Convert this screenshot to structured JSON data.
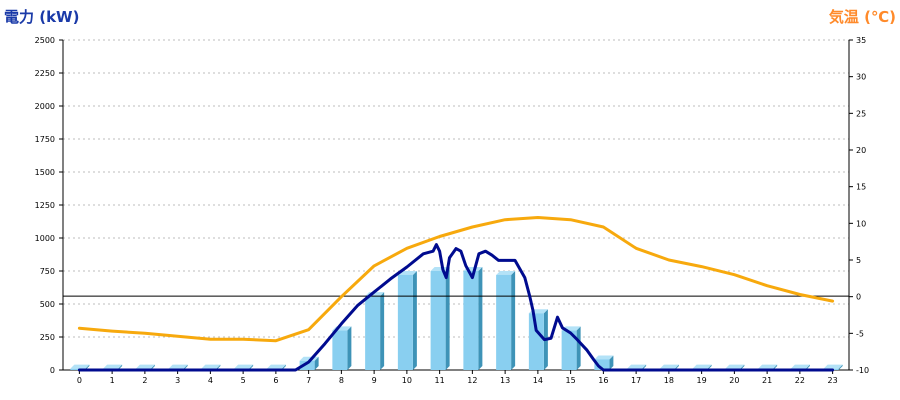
{
  "chart_data": {
    "type": "bar+line",
    "y_left_label": "電力 (kW)",
    "y_right_label": "気温 (℃)",
    "categories": [
      "0",
      "1",
      "2",
      "3",
      "4",
      "5",
      "6",
      "7",
      "8",
      "9",
      "10",
      "11",
      "12",
      "13",
      "14",
      "15",
      "16",
      "17",
      "18",
      "19",
      "20",
      "21",
      "22",
      "23"
    ],
    "y_left_ticks": [
      "0",
      "250",
      "500",
      "750",
      "1000",
      "1250",
      "1500",
      "1750",
      "2000",
      "2250",
      "2500"
    ],
    "y_right_ticks": [
      "-10",
      "-5",
      "0",
      "5",
      "10",
      "15",
      "20",
      "25",
      "30",
      "35"
    ],
    "y_left_range": [
      0,
      2500
    ],
    "y_right_range": [
      -10,
      35
    ],
    "grid": true,
    "series": [
      {
        "kind": "bar",
        "axis": "left",
        "values": [
          10,
          10,
          10,
          10,
          10,
          10,
          10,
          70,
          300,
          560,
          720,
          750,
          750,
          720,
          430,
          300,
          80,
          10,
          10,
          10,
          10,
          10,
          10,
          10
        ]
      },
      {
        "kind": "line",
        "axis": "left",
        "points": [
          [
            0,
            0
          ],
          [
            6.6,
            0
          ],
          [
            7,
            60
          ],
          [
            7.5,
            200
          ],
          [
            8,
            350
          ],
          [
            8.5,
            490
          ],
          [
            9,
            590
          ],
          [
            9.5,
            690
          ],
          [
            10,
            780
          ],
          [
            10.5,
            880
          ],
          [
            10.8,
            900
          ],
          [
            10.9,
            950
          ],
          [
            11,
            900
          ],
          [
            11.1,
            760
          ],
          [
            11.2,
            700
          ],
          [
            11.3,
            850
          ],
          [
            11.5,
            920
          ],
          [
            11.65,
            900
          ],
          [
            11.8,
            790
          ],
          [
            12,
            700
          ],
          [
            12.2,
            880
          ],
          [
            12.4,
            900
          ],
          [
            12.6,
            870
          ],
          [
            12.8,
            830
          ],
          [
            13,
            830
          ],
          [
            13.3,
            830
          ],
          [
            13.6,
            700
          ],
          [
            13.75,
            560
          ],
          [
            13.85,
            450
          ],
          [
            13.95,
            300
          ],
          [
            14.2,
            230
          ],
          [
            14.4,
            240
          ],
          [
            14.6,
            400
          ],
          [
            14.75,
            320
          ],
          [
            15,
            280
          ],
          [
            15.2,
            230
          ],
          [
            15.5,
            150
          ],
          [
            15.7,
            80
          ],
          [
            15.85,
            30
          ],
          [
            16,
            0
          ],
          [
            23,
            0
          ]
        ]
      },
      {
        "kind": "line",
        "axis": "right",
        "points": [
          [
            0,
            -4.3
          ],
          [
            1,
            -4.7
          ],
          [
            2,
            -5
          ],
          [
            3,
            -5.4
          ],
          [
            4,
            -5.8
          ],
          [
            5,
            -5.8
          ],
          [
            6,
            -6
          ],
          [
            7,
            -4.5
          ],
          [
            8,
            0
          ],
          [
            9,
            4.2
          ],
          [
            10,
            6.6
          ],
          [
            11,
            8.2
          ],
          [
            12,
            9.5
          ],
          [
            13,
            10.5
          ],
          [
            14,
            10.8
          ],
          [
            15,
            10.5
          ],
          [
            16,
            9.5
          ],
          [
            17,
            6.6
          ],
          [
            18,
            5
          ],
          [
            19,
            4.1
          ],
          [
            20,
            3
          ],
          [
            21,
            1.5
          ],
          [
            22,
            0.3
          ],
          [
            23,
            -0.6
          ]
        ]
      }
    ],
    "reference_line_value_left": 560
  },
  "colors": {
    "left_axis_title": "#1a3aa8",
    "right_axis_title": "#ff8a2a",
    "bar_front": "#89cff0",
    "bar_side": "#3e93b7",
    "bar_top": "#b3e2f7",
    "power_line": "#000b8f",
    "temp_line": "#f7a90d",
    "grid": "#bdbdbd",
    "ref_line": "#000000"
  }
}
